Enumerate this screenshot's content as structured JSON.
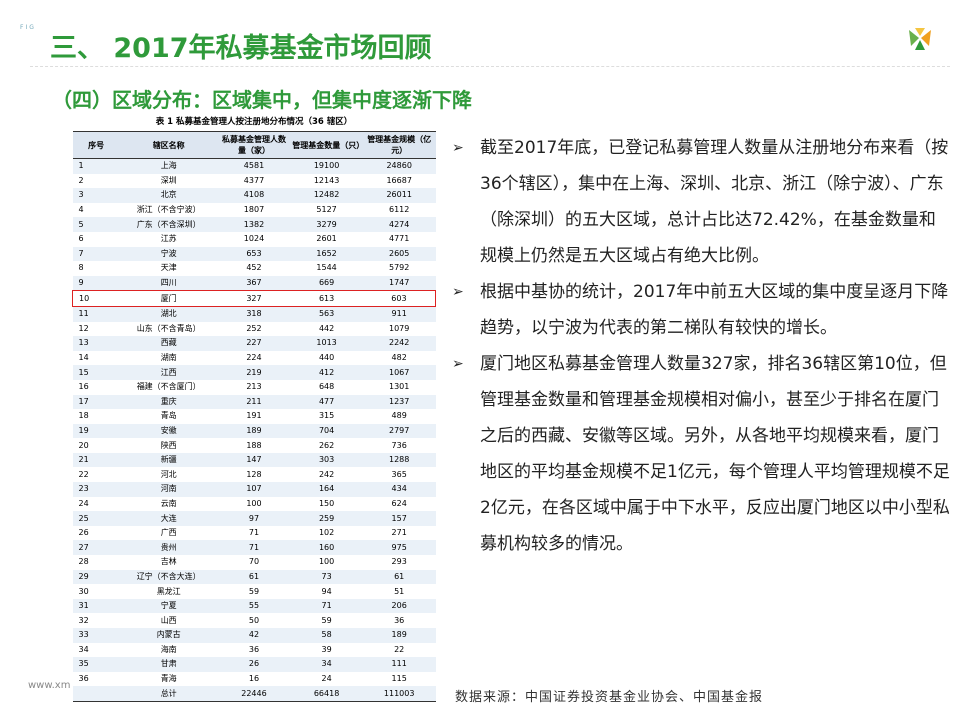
{
  "header": {
    "mark": "FIG",
    "title": "三、 2017年私募基金市场回顾",
    "subtitle": "（四）区域分布：区域集中，但集中度逐渐下降"
  },
  "table": {
    "caption": "表 1  私募基金管理人按注册地分布情况（36 辖区）",
    "columns": [
      "序号",
      "辖区名称",
      "私募基金管理人数量（家）",
      "管理基金数量（只）",
      "管理基金规模（亿元）"
    ],
    "rows": [
      [
        "1",
        "上海",
        "4581",
        "19100",
        "24860"
      ],
      [
        "2",
        "深圳",
        "4377",
        "12143",
        "16687"
      ],
      [
        "3",
        "北京",
        "4108",
        "12482",
        "26011"
      ],
      [
        "4",
        "浙江（不含宁波）",
        "1807",
        "5127",
        "6112"
      ],
      [
        "5",
        "广东（不含深圳）",
        "1382",
        "3279",
        "4274"
      ],
      [
        "6",
        "江苏",
        "1024",
        "2601",
        "4771"
      ],
      [
        "7",
        "宁波",
        "653",
        "1652",
        "2605"
      ],
      [
        "8",
        "天津",
        "452",
        "1544",
        "5792"
      ],
      [
        "9",
        "四川",
        "367",
        "669",
        "1747"
      ],
      [
        "10",
        "厦门",
        "327",
        "613",
        "603"
      ],
      [
        "11",
        "湖北",
        "318",
        "563",
        "911"
      ],
      [
        "12",
        "山东（不含青岛）",
        "252",
        "442",
        "1079"
      ],
      [
        "13",
        "西藏",
        "227",
        "1013",
        "2242"
      ],
      [
        "14",
        "湖南",
        "224",
        "440",
        "482"
      ],
      [
        "15",
        "江西",
        "219",
        "412",
        "1067"
      ],
      [
        "16",
        "福建（不含厦门）",
        "213",
        "648",
        "1301"
      ],
      [
        "17",
        "重庆",
        "211",
        "477",
        "1237"
      ],
      [
        "18",
        "青岛",
        "191",
        "315",
        "489"
      ],
      [
        "19",
        "安徽",
        "189",
        "704",
        "2797"
      ],
      [
        "20",
        "陕西",
        "188",
        "262",
        "736"
      ],
      [
        "21",
        "新疆",
        "147",
        "303",
        "1288"
      ],
      [
        "22",
        "河北",
        "128",
        "242",
        "365"
      ],
      [
        "23",
        "河南",
        "107",
        "164",
        "434"
      ],
      [
        "24",
        "云南",
        "100",
        "150",
        "624"
      ],
      [
        "25",
        "大连",
        "97",
        "259",
        "157"
      ],
      [
        "26",
        "广西",
        "71",
        "102",
        "271"
      ],
      [
        "27",
        "贵州",
        "71",
        "160",
        "975"
      ],
      [
        "28",
        "吉林",
        "70",
        "100",
        "293"
      ],
      [
        "29",
        "辽宁（不含大连）",
        "61",
        "73",
        "61"
      ],
      [
        "30",
        "黑龙江",
        "59",
        "94",
        "51"
      ],
      [
        "31",
        "宁夏",
        "55",
        "71",
        "206"
      ],
      [
        "32",
        "山西",
        "50",
        "59",
        "36"
      ],
      [
        "33",
        "内蒙古",
        "42",
        "58",
        "189"
      ],
      [
        "34",
        "海南",
        "36",
        "39",
        "22"
      ],
      [
        "35",
        "甘肃",
        "26",
        "34",
        "111"
      ],
      [
        "36",
        "青海",
        "16",
        "24",
        "115"
      ],
      [
        "",
        "总计",
        "22446",
        "66418",
        "111003"
      ]
    ]
  },
  "bullets": [
    "截至2017年底，已登记私募管理人数量从注册地分布来看（按36个辖区），集中在上海、深圳、北京、浙江（除宁波）、广东（除深圳）的五大区域，总计占比达72.42%，在基金数量和规模上仍然是五大区域占有绝大比例。",
    "根据中基协的统计，2017年中前五大区域的集中度呈逐月下降趋势，以宁波为代表的第二梯队有较快的增长。",
    "厦门地区私募基金管理人数量327家，排名36辖区第10位，但管理基金数量和管理基金规模相对偏小，甚至少于排名在厦门之后的西藏、安徽等区域。另外，从各地平均规模来看，厦门地区的平均基金规模不足1亿元，每个管理人平均管理规模不足2亿元，在各区域中属于中下水平，反应出厦门地区以中小型私募机构较多的情况。"
  ],
  "source": "数据来源：中国证券投资基金业协会、中国基金报",
  "footer": "www.xm"
}
